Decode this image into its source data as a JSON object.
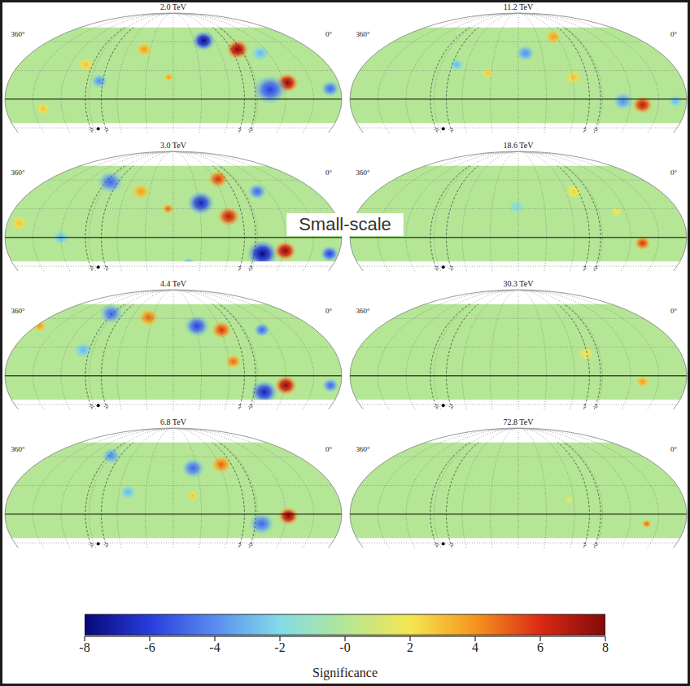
{
  "chart_data": [
    {
      "type": "heatmap",
      "title": "2.0 TeV",
      "xlim": [
        360,
        0
      ],
      "ylim": [
        -35,
        90
      ],
      "xticks": [
        {
          "value": 360,
          "label": "360°"
        },
        {
          "value": 0,
          "label": "0°"
        }
      ],
      "coverage": [
        -25,
        75
      ],
      "grid": true,
      "tick_labels": "x",
      "hotspots": [
        {
          "lon": 136,
          "lat": 61,
          "sig": -8,
          "r": 11
        },
        {
          "lon": 96,
          "lat": 52,
          "sig": 8,
          "r": 11
        },
        {
          "lon": 56,
          "lat": 17,
          "sig": 8,
          "r": 11
        },
        {
          "lon": 76,
          "lat": 10,
          "sig": -6,
          "r": 16
        },
        {
          "lon": 11,
          "lat": 11,
          "sig": -5,
          "r": 9
        },
        {
          "lon": 218,
          "lat": 52,
          "sig": 4,
          "r": 8
        },
        {
          "lon": 282,
          "lat": 36,
          "sig": 3,
          "r": 8
        },
        {
          "lon": 261,
          "lat": 19,
          "sig": -4,
          "r": 8
        },
        {
          "lon": 185,
          "lat": 23,
          "sig": 4,
          "r": 5
        },
        {
          "lon": 320,
          "lat": -10,
          "sig": 3,
          "r": 7
        },
        {
          "lon": 70,
          "lat": 48,
          "sig": -3,
          "r": 9
        }
      ]
    },
    {
      "type": "heatmap",
      "title": "3.0 TeV",
      "xlim": [
        360,
        0
      ],
      "ylim": [
        -35,
        90
      ],
      "xticks": [
        {
          "value": 360,
          "label": "360°"
        },
        {
          "value": 0,
          "label": "0°"
        }
      ],
      "coverage": [
        -25,
        75
      ],
      "grid": true,
      "tick_labels": "x",
      "hotspots": [
        {
          "lon": 268,
          "lat": 58,
          "sig": -5,
          "r": 12
        },
        {
          "lon": 221,
          "lat": 48,
          "sig": 4,
          "r": 9
        },
        {
          "lon": 186,
          "lat": 30,
          "sig": 5,
          "r": 6
        },
        {
          "lon": 148,
          "lat": 36,
          "sig": -7,
          "r": 13
        },
        {
          "lon": 115,
          "lat": 61,
          "sig": 6,
          "r": 10
        },
        {
          "lon": 119,
          "lat": 22,
          "sig": 7,
          "r": 11
        },
        {
          "lon": 74,
          "lat": 48,
          "sig": -5,
          "r": 9
        },
        {
          "lon": 83,
          "lat": -17,
          "sig": -8,
          "r": 15
        },
        {
          "lon": 59,
          "lat": -14,
          "sig": 8,
          "r": 11
        },
        {
          "lon": 10,
          "lat": -17,
          "sig": -6,
          "r": 9
        },
        {
          "lon": 347,
          "lat": 15,
          "sig": 3,
          "r": 8
        },
        {
          "lon": 163,
          "lat": -27,
          "sig": -4,
          "r": 6
        },
        {
          "lon": 300,
          "lat": 0,
          "sig": -3,
          "r": 8
        }
      ]
    },
    {
      "type": "heatmap",
      "title": "4.4 TeV",
      "xlim": [
        360,
        0
      ],
      "ylim": [
        -35,
        90
      ],
      "xticks": [
        {
          "value": 360,
          "label": "360°"
        },
        {
          "value": 0,
          "label": "0°"
        }
      ],
      "coverage": [
        -25,
        75
      ],
      "grid": true,
      "tick_labels": "x",
      "hotspots": [
        {
          "lon": 276,
          "lat": 65,
          "sig": -5,
          "r": 11
        },
        {
          "lon": 216,
          "lat": 61,
          "sig": 5,
          "r": 10
        },
        {
          "lon": 149,
          "lat": 52,
          "sig": -6,
          "r": 12
        },
        {
          "lon": 119,
          "lat": 48,
          "sig": 6,
          "r": 10
        },
        {
          "lon": 115,
          "lat": 15,
          "sig": 5,
          "r": 8
        },
        {
          "lon": 68,
          "lat": 48,
          "sig": -5,
          "r": 8
        },
        {
          "lon": 81,
          "lat": -17,
          "sig": -7,
          "r": 13
        },
        {
          "lon": 59,
          "lat": -10,
          "sig": 8,
          "r": 11
        },
        {
          "lon": 11,
          "lat": -10,
          "sig": -5,
          "r": 8
        },
        {
          "lon": 355,
          "lat": 52,
          "sig": 4,
          "r": 7
        },
        {
          "lon": 281,
          "lat": 27,
          "sig": -3,
          "r": 9
        }
      ]
    },
    {
      "type": "heatmap",
      "title": "6.8 TeV",
      "xlim": [
        360,
        0
      ],
      "ylim": [
        -35,
        90
      ],
      "xticks": [
        {
          "value": 360,
          "label": "360°"
        },
        {
          "value": 0,
          "label": "0°"
        }
      ],
      "coverage": [
        -25,
        75
      ],
      "grid": true,
      "tick_labels": "x",
      "hotspots": [
        {
          "lon": 270,
          "lat": 61,
          "sig": -4,
          "r": 9
        },
        {
          "lon": 155,
          "lat": 48,
          "sig": -5,
          "r": 11
        },
        {
          "lon": 117,
          "lat": 52,
          "sig": 5,
          "r": 10
        },
        {
          "lon": 85,
          "lat": -10,
          "sig": -5,
          "r": 12
        },
        {
          "lon": 57,
          "lat": -2,
          "sig": 8,
          "r": 10
        },
        {
          "lon": 230,
          "lat": 23,
          "sig": -3,
          "r": 8
        },
        {
          "lon": 159,
          "lat": 19,
          "sig": 3,
          "r": 6
        }
      ]
    },
    {
      "type": "heatmap",
      "title": "11.2 TeV",
      "xlim": [
        360,
        0
      ],
      "ylim": [
        -35,
        90
      ],
      "xticks": [
        {
          "value": 360,
          "label": "360°"
        },
        {
          "value": 0,
          "label": "0°"
        }
      ],
      "coverage": [
        -25,
        75
      ],
      "grid": true,
      "tick_labels": "x",
      "hotspots": [
        {
          "lon": 126,
          "lat": 65,
          "sig": 4,
          "r": 8
        },
        {
          "lon": 119,
          "lat": 23,
          "sig": 3,
          "r": 8
        },
        {
          "lon": 171,
          "lat": 48,
          "sig": -4,
          "r": 9
        },
        {
          "lon": 47,
          "lat": -6,
          "sig": 7,
          "r": 10
        },
        {
          "lon": 68,
          "lat": -2,
          "sig": -4,
          "r": 10
        },
        {
          "lon": 12,
          "lat": -2,
          "sig": -3,
          "r": 7
        },
        {
          "lon": 252,
          "lat": 36,
          "sig": -3,
          "r": 7
        },
        {
          "lon": 214,
          "lat": 27,
          "sig": 3,
          "r": 6
        }
      ]
    },
    {
      "type": "heatmap",
      "title": "18.6 TeV",
      "xlim": [
        360,
        0
      ],
      "ylim": [
        -35,
        90
      ],
      "xticks": [
        {
          "value": 360,
          "label": "360°"
        },
        {
          "value": 0,
          "label": "0°"
        }
      ],
      "coverage": [
        -25,
        75
      ],
      "grid": true,
      "tick_labels": "x",
      "hotspots": [
        {
          "lon": 47,
          "lat": -6,
          "sig": 6,
          "r": 8
        },
        {
          "lon": 182,
          "lat": 32,
          "sig": -2,
          "r": 8
        },
        {
          "lon": 110,
          "lat": 48,
          "sig": 2.5,
          "r": 8
        },
        {
          "lon": 70,
          "lat": 27,
          "sig": 2,
          "r": 6
        }
      ]
    },
    {
      "type": "heatmap",
      "title": "30.3 TeV",
      "xlim": [
        360,
        0
      ],
      "ylim": [
        -35,
        90
      ],
      "xticks": [
        {
          "value": 360,
          "label": "360°"
        },
        {
          "value": 0,
          "label": "0°"
        }
      ],
      "coverage": [
        -25,
        75
      ],
      "grid": true,
      "tick_labels": "x",
      "hotspots": [
        {
          "lon": 47,
          "lat": -6,
          "sig": 4,
          "r": 7
        },
        {
          "lon": 105,
          "lat": 23,
          "sig": 2,
          "r": 8
        }
      ]
    },
    {
      "type": "heatmap",
      "title": "72.8 TeV",
      "xlim": [
        360,
        0
      ],
      "ylim": [
        -35,
        90
      ],
      "xticks": [
        {
          "value": 360,
          "label": "360°"
        },
        {
          "value": 0,
          "label": "0°"
        }
      ],
      "coverage": [
        -25,
        75
      ],
      "grid": true,
      "tick_labels": "x",
      "hotspots": [
        {
          "lon": 42,
          "lat": -10,
          "sig": 5,
          "r": 5
        },
        {
          "lon": 125,
          "lat": 15,
          "sig": 1.5,
          "r": 5
        }
      ]
    }
  ],
  "annotation": "Small-scale",
  "plane_labels": [
    {
      "lon": 274,
      "label": "-5"
    },
    {
      "lon": 257,
      "label": "-5"
    },
    {
      "lon": 104,
      "label": "5"
    },
    {
      "lon": 92,
      "label": "-5"
    }
  ],
  "colorbar": {
    "range": [
      -8,
      8
    ],
    "ticks": [
      -8,
      -6,
      -4,
      -2,
      {
        "value": 0,
        "label": "-0"
      },
      2,
      4,
      6,
      8
    ],
    "label": "Significance"
  }
}
